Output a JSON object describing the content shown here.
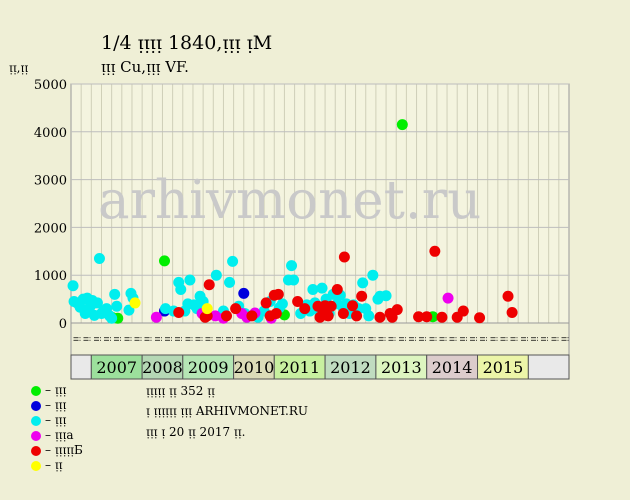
{
  "title": "1/4 ᴉᴉᴉᴉ 1840,ᴉᴉᴉ ᴉМ",
  "subtitle": "ᴉᴉᴉ Cu,ᴉᴉᴉ VF.",
  "ylabel": "ᴉᴉ,ᴉᴉ",
  "watermark": "arhivmonet.ru",
  "info": {
    "line1": "ᴉᴉᴉᴉᴉ ᴉᴉ 352 ᴉᴉ",
    "line2": "ᴉ ᴉᴉᴉᴉᴉᴉ ᴉᴉᴉ ARHIVMONET.RU",
    "line3": "ᴉᴉᴉ ᴉ 20 ᴉᴉ 2017 ᴉᴉ."
  },
  "legend": [
    {
      "label": "– ᴉᴉᴉ",
      "color": "#00ee00"
    },
    {
      "label": "– ᴉᴉᴉ",
      "color": "#0000dd"
    },
    {
      "label": "– ᴉᴉᴉ",
      "color": "#00eeee"
    },
    {
      "label": "– ᴉᴉᴉа",
      "color": "#ee00ee"
    },
    {
      "label": "– ᴉᴉᴉᴉᴉБ",
      "color": "#ee0000"
    },
    {
      "label": "– ᴉᴉ",
      "color": "#ffff00"
    }
  ],
  "chart_data": {
    "type": "scatter",
    "ylim": [
      0,
      5000
    ],
    "yticks": [
      0,
      1000,
      2000,
      3000,
      4000,
      5000
    ],
    "grid": true,
    "xlim": [
      0,
      49
    ],
    "month_labels": [
      "ᴉᴉ",
      "ᴉᴉ",
      "ᴉᴉ",
      "ᴉᴉ",
      "ᴉᴉ",
      "ᴉᴉ",
      "ᴉᴉ",
      "ᴉᴉ",
      "ᴉᴉ",
      "ᴉᴉ",
      "ᴉᴉ",
      "ᴉᴉ",
      "ᴉᴉ",
      "ᴉᴉ",
      "ᴉᴉ",
      "ᴉᴉ",
      "ᴉᴉ",
      "ᴉᴉ",
      "ᴉᴉ",
      "ᴉᴉ",
      "ᴉᴉ",
      "ᴉᴉ",
      "ᴉᴉ",
      "ᴉᴉ",
      "ᴉᴉ",
      "ᴉᴉ",
      "ᴉᴉ",
      "ᴉᴉ",
      "ᴉᴉ",
      "ᴉᴉ",
      "ᴉᴉ",
      "ᴉᴉ",
      "ᴉᴉ",
      "ᴉᴉ",
      "ᴉᴉ",
      "ᴉᴉ",
      "ᴉᴉ",
      "ᴉᴉ",
      "ᴉᴉ",
      "ᴉᴉ",
      "ᴉᴉ",
      "ᴉᴉ",
      "ᴉᴉ",
      "ᴉᴉ",
      "ᴉᴉ",
      "ᴉᴉ",
      "ᴉᴉ",
      "ᴉᴉ",
      "ᴉᴉ"
    ],
    "years": [
      {
        "label": "",
        "start": 0,
        "end": 2,
        "color": "#e9e9e9"
      },
      {
        "label": "2007",
        "start": 2,
        "end": 7,
        "color": "#9ce09c"
      },
      {
        "label": "2008",
        "start": 7,
        "end": 11,
        "color": "#b5d8b5"
      },
      {
        "label": "2009",
        "start": 11,
        "end": 16,
        "color": "#b5e6b5"
      },
      {
        "label": "2010",
        "start": 16,
        "end": 20,
        "color": "#dcdcb8"
      },
      {
        "label": "2011",
        "start": 20,
        "end": 25,
        "color": "#c8f0a0"
      },
      {
        "label": "2012",
        "start": 25,
        "end": 30,
        "color": "#c0dcc0"
      },
      {
        "label": "2013",
        "start": 30,
        "end": 35,
        "color": "#ddf5c0"
      },
      {
        "label": "2014",
        "start": 35,
        "end": 40,
        "color": "#dccccc"
      },
      {
        "label": "2015",
        "start": 40,
        "end": 45,
        "color": "#ecf5a8"
      },
      {
        "label": "",
        "start": 45,
        "end": 49,
        "color": "#e9e9e9"
      }
    ],
    "series": [
      {
        "name": "ᴉᴉᴉ",
        "color": "#00ee00",
        "points": [
          [
            4.0,
            120
          ],
          [
            4.6,
            100
          ],
          [
            9.2,
            1300
          ],
          [
            21.0,
            170
          ],
          [
            32.6,
            4150
          ],
          [
            35.6,
            130
          ]
        ]
      },
      {
        "name": "ᴉᴉᴉ",
        "color": "#0000dd",
        "points": [
          [
            9.2,
            250
          ],
          [
            17.0,
            620
          ]
        ]
      },
      {
        "name": "ᴉᴉᴉ",
        "color": "#00eeee",
        "points": [
          [
            0.2,
            780
          ],
          [
            0.3,
            450
          ],
          [
            0.6,
            420
          ],
          [
            0.9,
            330
          ],
          [
            1.2,
            500
          ],
          [
            1.4,
            200
          ],
          [
            1.6,
            520
          ],
          [
            1.9,
            350
          ],
          [
            2.1,
            470
          ],
          [
            2.3,
            160
          ],
          [
            2.6,
            420
          ],
          [
            2.8,
            1350
          ],
          [
            3.0,
            200
          ],
          [
            3.2,
            250
          ],
          [
            3.5,
            300
          ],
          [
            3.8,
            150
          ],
          [
            4.0,
            100
          ],
          [
            4.3,
            600
          ],
          [
            4.5,
            350
          ],
          [
            5.7,
            270
          ],
          [
            5.9,
            620
          ],
          [
            6.1,
            520
          ],
          [
            9.3,
            300
          ],
          [
            10.1,
            250
          ],
          [
            10.6,
            850
          ],
          [
            10.8,
            700
          ],
          [
            11.2,
            250
          ],
          [
            11.5,
            400
          ],
          [
            11.7,
            900
          ],
          [
            12.1,
            380
          ],
          [
            12.4,
            300
          ],
          [
            12.7,
            560
          ],
          [
            13.0,
            450
          ],
          [
            14.3,
            1000
          ],
          [
            15.0,
            250
          ],
          [
            15.6,
            850
          ],
          [
            15.9,
            1290
          ],
          [
            16.5,
            350
          ],
          [
            17.1,
            200
          ],
          [
            18.4,
            120
          ],
          [
            19.0,
            250
          ],
          [
            19.6,
            450
          ],
          [
            20.5,
            320
          ],
          [
            20.8,
            400
          ],
          [
            21.4,
            900
          ],
          [
            21.7,
            1200
          ],
          [
            21.9,
            900
          ],
          [
            22.6,
            200
          ],
          [
            23.2,
            380
          ],
          [
            23.5,
            250
          ],
          [
            23.8,
            700
          ],
          [
            24.0,
            420
          ],
          [
            24.4,
            250
          ],
          [
            24.7,
            730
          ],
          [
            25.1,
            500
          ],
          [
            25.4,
            200
          ],
          [
            25.8,
            600
          ],
          [
            26.2,
            400
          ],
          [
            26.5,
            580
          ],
          [
            26.8,
            300
          ],
          [
            27.1,
            400
          ],
          [
            27.4,
            200
          ],
          [
            27.8,
            380
          ],
          [
            28.3,
            300
          ],
          [
            28.7,
            840
          ],
          [
            29.0,
            300
          ],
          [
            29.3,
            150
          ],
          [
            29.7,
            1000
          ],
          [
            30.2,
            500
          ],
          [
            30.4,
            560
          ],
          [
            31.0,
            570
          ]
        ]
      },
      {
        "name": "ᴉᴉᴉа",
        "color": "#ee00ee",
        "points": [
          [
            8.4,
            120
          ],
          [
            12.9,
            200
          ],
          [
            14.2,
            150
          ],
          [
            15.0,
            100
          ],
          [
            16.8,
            200
          ],
          [
            17.3,
            120
          ],
          [
            18.1,
            210
          ],
          [
            19.7,
            100
          ],
          [
            37.1,
            520
          ]
        ]
      },
      {
        "name": "ᴉᴉᴉᴉᴉБ",
        "color": "#ee0000",
        "points": [
          [
            10.6,
            220
          ],
          [
            13.2,
            120
          ],
          [
            13.4,
            150
          ],
          [
            13.6,
            800
          ],
          [
            15.3,
            150
          ],
          [
            16.2,
            300
          ],
          [
            17.8,
            150
          ],
          [
            19.2,
            420
          ],
          [
            19.6,
            150
          ],
          [
            20.0,
            580
          ],
          [
            20.2,
            200
          ],
          [
            20.4,
            600
          ],
          [
            22.3,
            450
          ],
          [
            23.0,
            300
          ],
          [
            24.3,
            350
          ],
          [
            24.5,
            120
          ],
          [
            24.8,
            250
          ],
          [
            25.0,
            360
          ],
          [
            25.3,
            150
          ],
          [
            25.6,
            350
          ],
          [
            26.2,
            700
          ],
          [
            26.8,
            200
          ],
          [
            26.9,
            1380
          ],
          [
            27.7,
            360
          ],
          [
            28.1,
            150
          ],
          [
            28.6,
            560
          ],
          [
            30.4,
            120
          ],
          [
            31.4,
            200
          ],
          [
            31.6,
            120
          ],
          [
            32.1,
            280
          ],
          [
            34.2,
            130
          ],
          [
            35.0,
            130
          ],
          [
            35.8,
            1500
          ],
          [
            36.5,
            120
          ],
          [
            38.0,
            120
          ],
          [
            38.6,
            250
          ],
          [
            40.2,
            110
          ],
          [
            43.0,
            560
          ],
          [
            43.4,
            220
          ]
        ]
      },
      {
        "name": "ᴉᴉ",
        "color": "#ffff00",
        "points": [
          [
            6.3,
            420
          ],
          [
            13.4,
            300
          ]
        ]
      }
    ]
  }
}
